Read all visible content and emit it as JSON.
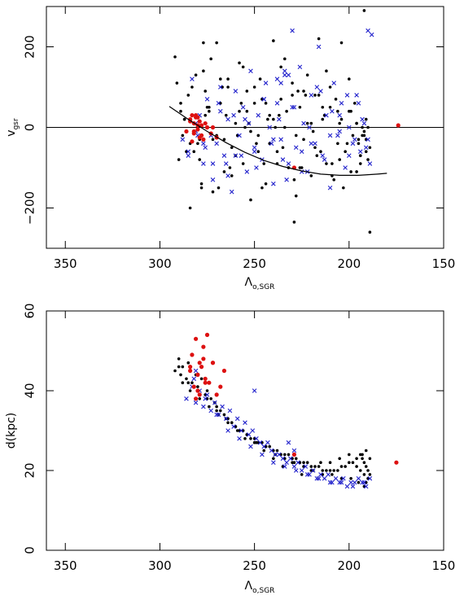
{
  "chart_data": [
    {
      "type": "scatter",
      "title": "",
      "xlabel": "Λ",
      "xlabel_sub": "o,SGR",
      "ylabel": "v",
      "ylabel_sub": "gsr",
      "xlim": [
        360,
        150
      ],
      "ylim": [
        -300,
        300
      ],
      "x_ticks": [
        350,
        300,
        250,
        200,
        150
      ],
      "x_tick_labels": [
        "350",
        "300",
        "250",
        "200",
        "150"
      ],
      "y_ticks": [
        -200,
        0,
        200
      ],
      "y_tick_labels": [
        "−200",
        "0",
        "200"
      ],
      "grid": false,
      "legend": "none",
      "reference_line": {
        "y": 0,
        "color": "#000000"
      },
      "curve": {
        "name": "",
        "color": "#000000",
        "x": [
          295,
          285,
          275,
          265,
          255,
          245,
          235,
          225,
          215,
          205,
          195,
          185,
          180
        ],
        "y": [
          52,
          20,
          -10,
          -38,
          -62,
          -82,
          -97,
          -108,
          -116,
          -119,
          -119,
          -116,
          -114
        ]
      },
      "series": [
        {
          "name": "",
          "marker": "dot",
          "color": "#000000",
          "x": [
            292,
            289,
            287,
            284,
            281,
            279,
            278,
            276,
            274,
            272,
            270,
            268,
            266,
            264,
            262,
            260,
            258,
            256,
            254,
            252,
            250,
            248,
            246,
            244,
            242,
            240,
            238,
            236,
            234,
            232,
            230,
            228,
            226,
            224,
            222,
            220,
            218,
            216,
            214,
            212,
            210,
            208,
            206,
            204,
            202,
            200,
            198,
            196,
            195,
            194,
            193,
            192,
            191,
            190,
            189,
            191,
            193,
            196,
            199,
            203,
            207,
            212,
            217,
            222,
            227,
            232,
            237,
            242,
            247,
            252,
            257,
            262,
            267,
            272,
            277,
            282,
            287,
            290,
            285,
            280,
            275,
            270,
            265,
            260,
            255,
            250,
            245,
            240,
            235,
            230,
            225,
            220,
            215,
            210,
            205,
            200,
            195,
            190,
            192,
            194,
            197,
            201,
            205,
            209,
            213,
            218,
            223,
            228,
            233,
            238,
            243,
            248,
            253,
            258,
            263,
            268,
            273,
            278,
            283,
            288,
            291,
            286,
            276,
            266,
            256,
            246,
            236,
            226,
            216,
            206,
            196,
            191,
            189,
            194,
            199,
            204,
            209,
            214,
            219,
            224,
            229,
            234,
            239,
            244,
            249,
            254,
            259,
            264,
            269,
            274,
            279,
            284,
            289,
            277,
            229,
            192
          ],
          "y": [
            175,
            60,
            20,
            -40,
            130,
            -80,
            -150,
            90,
            40,
            -160,
            210,
            60,
            -110,
            120,
            -50,
            10,
            160,
            -90,
            40,
            -180,
            100,
            -20,
            70,
            -140,
            30,
            215,
            -60,
            150,
            0,
            -100,
            110,
            -170,
            50,
            -30,
            130,
            -120,
            80,
            220,
            20,
            -90,
            100,
            -130,
            40,
            210,
            -60,
            120,
            -20,
            10,
            -40,
            -70,
            0,
            -10,
            -30,
            -80,
            -50,
            20,
            -20,
            -110,
            40,
            -150,
            70,
            140,
            -70,
            10,
            90,
            -100,
            30,
            -40,
            120,
            -10,
            60,
            -120,
            100,
            -30,
            140,
            -60,
            20,
            -80,
            80,
            -40,
            50,
            -20,
            30,
            -70,
            0,
            60,
            -90,
            20,
            -50,
            80,
            -100,
            10,
            -60,
            50,
            -80,
            40,
            -30,
            0,
            -20,
            -90,
            60,
            -40,
            10,
            -120,
            30,
            -50,
            80,
            -20,
            40,
            -90,
            20,
            -60,
            10,
            40,
            -100,
            120,
            170,
            -140,
            100,
            -20,
            110,
            -60,
            30,
            -30,
            150,
            -150,
            70,
            -100,
            80,
            -40,
            10,
            -60,
            -260,
            -70,
            -110,
            20,
            -90,
            50,
            -10,
            90,
            -130,
            170,
            0,
            60,
            -40,
            90,
            -20,
            100,
            -150,
            50,
            -30,
            -200,
            40,
            210,
            -235,
            290
          ]
        },
        {
          "name": "",
          "marker": "cross",
          "color": "#2222cc",
          "x": [
            288,
            285,
            283,
            281,
            279,
            277,
            275,
            272,
            270,
            268,
            266,
            264,
            262,
            260,
            258,
            256,
            254,
            252,
            250,
            248,
            246,
            244,
            242,
            240,
            238,
            236,
            234,
            232,
            230,
            228,
            226,
            224,
            222,
            220,
            218,
            216,
            214,
            212,
            210,
            208,
            206,
            204,
            202,
            200,
            198,
            196,
            194,
            192,
            190,
            188,
            190,
            232,
            234,
            236,
            238,
            280,
            276,
            272,
            268,
            264,
            260,
            255,
            250,
            245,
            240,
            235,
            230,
            225,
            220,
            215,
            210,
            205,
            200,
            195,
            191,
            189,
            193,
            197,
            201,
            205,
            209,
            213,
            217,
            221,
            225,
            229,
            233,
            237,
            241,
            245,
            249,
            253,
            257,
            261,
            265,
            269,
            273,
            277,
            281,
            285
          ],
          "y": [
            -30,
            -60,
            120,
            -10,
            30,
            -90,
            70,
            -130,
            -40,
            100,
            -70,
            20,
            -160,
            90,
            -20,
            50,
            -110,
            140,
            -50,
            30,
            -80,
            110,
            0,
            -140,
            60,
            -30,
            130,
            -90,
            240,
            -50,
            150,
            10,
            -110,
            80,
            -40,
            200,
            -70,
            30,
            -150,
            110,
            -20,
            60,
            -100,
            0,
            -40,
            80,
            -60,
            10,
            240,
            230,
            -30,
            130,
            140,
            110,
            120,
            -20,
            -50,
            -90,
            40,
            -120,
            -70,
            20,
            -60,
            70,
            -30,
            -80,
            50,
            -110,
            -40,
            90,
            -20,
            30,
            -70,
            60,
            -50,
            -90,
            20,
            -30,
            80,
            -10,
            40,
            -80,
            100,
            0,
            -60,
            50,
            -130,
            20,
            -40,
            70,
            -100,
            10,
            -70,
            30,
            -90,
            60,
            -20,
            -40,
            10,
            -70
          ]
        },
        {
          "name": "",
          "marker": "dot",
          "color": "#dd1111",
          "x": [
            284,
            283,
            282,
            281,
            280,
            279,
            278,
            282,
            280,
            277,
            275,
            273,
            281,
            279,
            283,
            276,
            270,
            284,
            278,
            282,
            280,
            174,
            229,
            272,
            286
          ],
          "y": [
            20,
            30,
            10,
            25,
            -5,
            15,
            -20,
            -10,
            5,
            -30,
            0,
            -15,
            30,
            -25,
            -35,
            10,
            -25,
            15,
            5,
            -15,
            25,
            5,
            -100,
            0,
            -10
          ]
        }
      ]
    },
    {
      "type": "scatter",
      "title": "",
      "xlabel": "Λ",
      "xlabel_sub": "o,SGR",
      "ylabel": "d(kpc)",
      "ylabel_sub": "",
      "xlim": [
        360,
        150
      ],
      "ylim": [
        0,
        60
      ],
      "x_ticks": [
        350,
        300,
        250,
        200,
        150
      ],
      "x_tick_labels": [
        "350",
        "300",
        "250",
        "200",
        "150"
      ],
      "y_ticks": [
        0,
        20,
        40,
        60
      ],
      "y_tick_labels": [
        "0",
        "20",
        "40",
        "60"
      ],
      "grid": false,
      "legend": "none",
      "series": [
        {
          "name": "",
          "marker": "dot",
          "color": "#000000",
          "x": [
            292,
            290,
            289,
            288,
            286,
            285,
            283,
            281,
            280,
            278,
            276,
            275,
            273,
            271,
            270,
            268,
            266,
            264,
            262,
            260,
            258,
            256,
            254,
            252,
            250,
            248,
            246,
            244,
            242,
            240,
            238,
            236,
            234,
            232,
            230,
            228,
            226,
            224,
            222,
            220,
            218,
            216,
            214,
            212,
            210,
            208,
            206,
            204,
            202,
            200,
            198,
            196,
            194,
            193,
            192,
            191,
            190,
            189,
            288,
            284,
            279,
            274,
            269,
            264,
            259,
            254,
            249,
            244,
            239,
            234,
            229,
            224,
            219,
            214,
            209,
            204,
            199,
            195,
            191,
            190,
            192,
            194,
            196,
            200,
            205,
            210,
            215,
            220,
            225,
            230,
            235,
            240,
            245,
            250,
            255,
            260,
            265,
            270,
            275,
            280,
            285,
            290,
            191,
            193,
            189,
            192
          ],
          "y": [
            45,
            48,
            44,
            46,
            43,
            47,
            42,
            44,
            41,
            43,
            39,
            40,
            38,
            37,
            36,
            35,
            34,
            33,
            32,
            31,
            30,
            30,
            29,
            28,
            28,
            27,
            27,
            26,
            26,
            25,
            25,
            24,
            24,
            24,
            23,
            23,
            22,
            22,
            22,
            21,
            21,
            21,
            20,
            20,
            20,
            20,
            20,
            21,
            21,
            22,
            22,
            23,
            24,
            23,
            22,
            21,
            20,
            19,
            42,
            40,
            38,
            36,
            34,
            32,
            30,
            29,
            27,
            26,
            24,
            23,
            22,
            21,
            20,
            19,
            19,
            18,
            18,
            17,
            17,
            18,
            19,
            20,
            21,
            24,
            23,
            22,
            22,
            20,
            19,
            22,
            21,
            23,
            25,
            27,
            28,
            31,
            33,
            35,
            38,
            40,
            42,
            46,
            25,
            24,
            23,
            16
          ]
        },
        {
          "name": "",
          "marker": "cross",
          "color": "#2222cc",
          "x": [
            286,
            283,
            281,
            279,
            277,
            275,
            273,
            271,
            269,
            267,
            265,
            263,
            261,
            259,
            257,
            255,
            253,
            251,
            249,
            247,
            245,
            243,
            241,
            239,
            237,
            235,
            233,
            231,
            229,
            227,
            225,
            223,
            221,
            219,
            217,
            215,
            213,
            211,
            209,
            207,
            205,
            203,
            201,
            199,
            197,
            195,
            193,
            191,
            189,
            282,
            276,
            270,
            264,
            258,
            252,
            246,
            240,
            234,
            228,
            222,
            216,
            210,
            204,
            198,
            192,
            250,
            232,
            229,
            281
          ],
          "y": [
            38,
            41,
            37,
            40,
            36,
            39,
            35,
            37,
            34,
            36,
            33,
            35,
            31,
            33,
            30,
            32,
            29,
            30,
            28,
            27,
            26,
            27,
            25,
            24,
            24,
            23,
            22,
            23,
            21,
            22,
            20,
            21,
            19,
            20,
            18,
            19,
            18,
            19,
            17,
            18,
            17,
            18,
            16,
            17,
            17,
            18,
            17,
            16,
            18,
            43,
            38,
            34,
            30,
            28,
            26,
            24,
            22,
            21,
            20,
            19,
            18,
            17,
            17,
            16,
            17,
            40,
            27,
            25,
            45
          ]
        },
        {
          "name": "",
          "marker": "dot",
          "color": "#dd1111",
          "x": [
            283,
            281,
            279,
            277,
            275,
            272,
            284,
            280,
            278,
            276,
            282,
            279,
            274,
            266,
            268,
            281,
            277,
            284,
            280,
            276,
            270,
            272,
            175,
            229
          ],
          "y": [
            49,
            53,
            47,
            51,
            54,
            47,
            45,
            44,
            46,
            43,
            41,
            39,
            42,
            45,
            41,
            38,
            48,
            46,
            40,
            42,
            39,
            47,
            22,
            24
          ]
        }
      ]
    }
  ]
}
